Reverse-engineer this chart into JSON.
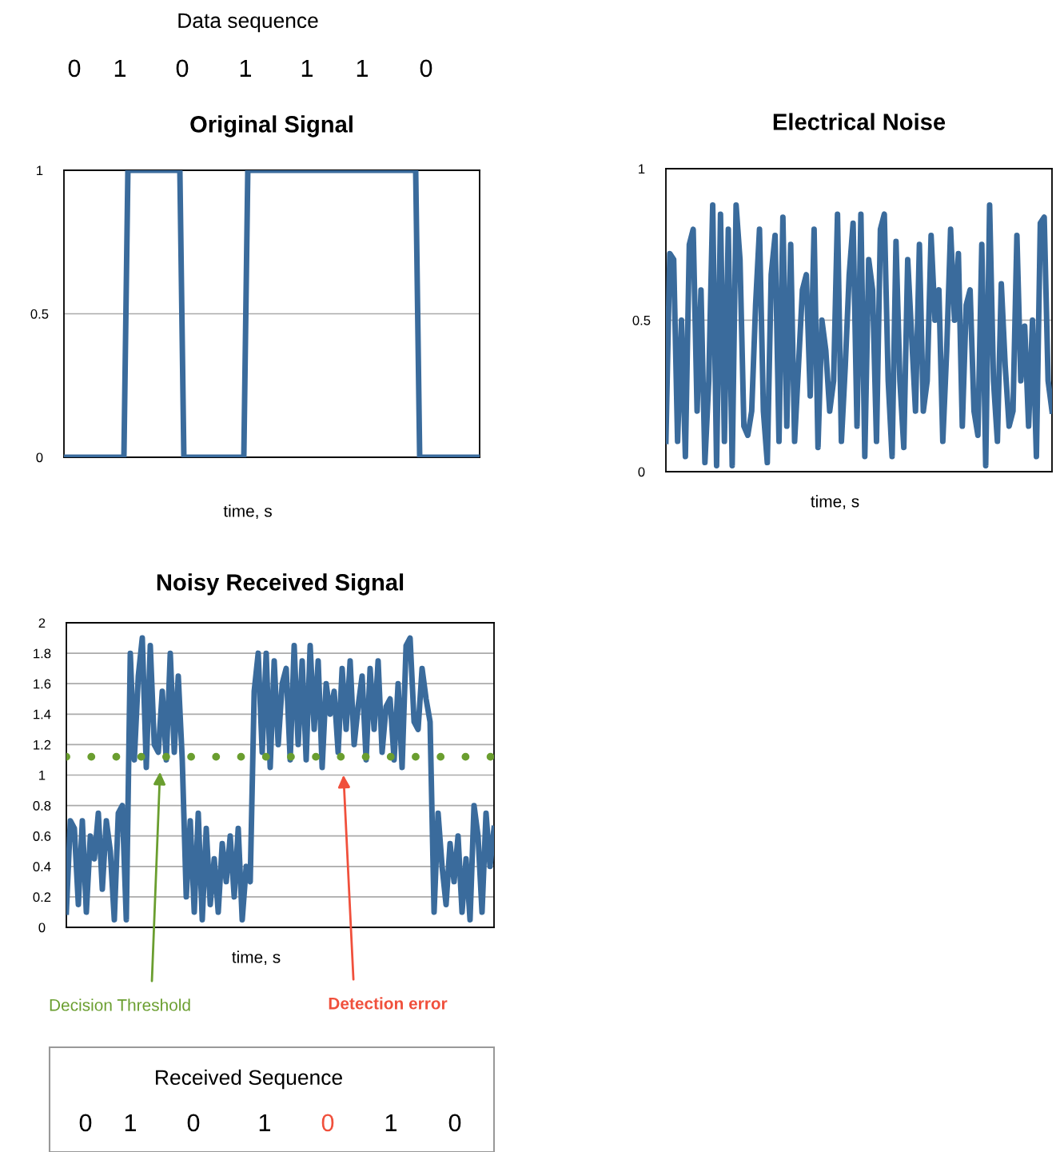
{
  "chart_data": [
    {
      "type": "line",
      "title": "Original Signal",
      "xlabel": "time, s",
      "annotations": [
        "Data sequence",
        "0",
        "1",
        "0",
        "1",
        "1",
        "1",
        "0"
      ],
      "categories": [
        null,
        null,
        null,
        null,
        null,
        null,
        null,
        null,
        null,
        null,
        null,
        null,
        null,
        null,
        null,
        null,
        null,
        null,
        null,
        null,
        null,
        null,
        null,
        null,
        null,
        null,
        null,
        null,
        null,
        null,
        null,
        null,
        null,
        null,
        null,
        null,
        null,
        null,
        null,
        null,
        null,
        null,
        null,
        null,
        null,
        null,
        null,
        null,
        null,
        null,
        null,
        null,
        null,
        null,
        null,
        null,
        null,
        null,
        null,
        null,
        null,
        null,
        null,
        null,
        null,
        null,
        null,
        null,
        null,
        null,
        null,
        null,
        null,
        null,
        null,
        null,
        null,
        null,
        null,
        null,
        null,
        null,
        null,
        null,
        null,
        null,
        null,
        null,
        null,
        null,
        null,
        null,
        null,
        null,
        null,
        null,
        null,
        null,
        null,
        null,
        null,
        null,
        null,
        null,
        null
      ],
      "series": [
        {
          "color": "#3a6b9c",
          "values": [
            0,
            0,
            0,
            0,
            0,
            0,
            0,
            0,
            0,
            0,
            0,
            0,
            0,
            0,
            0,
            0,
            1,
            1,
            1,
            1,
            1,
            1,
            1,
            1,
            1,
            1,
            1,
            1,
            1,
            1,
            0,
            0,
            0,
            0,
            0,
            0,
            0,
            0,
            0,
            0,
            0,
            0,
            0,
            0,
            0,
            0,
            1,
            1,
            1,
            1,
            1,
            1,
            1,
            1,
            1,
            1,
            1,
            1,
            1,
            1,
            1,
            1,
            1,
            1,
            1,
            1,
            1,
            1,
            1,
            1,
            1,
            1,
            1,
            1,
            1,
            1,
            1,
            1,
            1,
            1,
            1,
            1,
            1,
            1,
            1,
            1,
            1,
            1,
            1,
            0,
            0,
            0,
            0,
            0,
            0,
            0,
            0,
            0,
            0,
            0,
            0,
            0,
            0,
            0,
            0
          ]
        }
      ],
      "ylim": [
        0,
        1
      ],
      "yticks": [
        0,
        0.5,
        1
      ],
      "grid": "y",
      "tick_labels": "y",
      "marker": "none",
      "line_style": "solid"
    },
    {
      "type": "line",
      "title": "Electrical Noise",
      "xlabel": "time, s",
      "categories": [
        null,
        null,
        null,
        null,
        null,
        null,
        null,
        null,
        null,
        null,
        null,
        null,
        null,
        null,
        null,
        null,
        null,
        null,
        null,
        null,
        null,
        null,
        null,
        null,
        null,
        null,
        null,
        null,
        null,
        null,
        null,
        null,
        null,
        null,
        null,
        null,
        null,
        null,
        null,
        null,
        null,
        null,
        null,
        null,
        null,
        null,
        null,
        null,
        null,
        null,
        null,
        null,
        null,
        null,
        null,
        null,
        null,
        null,
        null,
        null,
        null,
        null,
        null,
        null,
        null,
        null,
        null,
        null,
        null,
        null,
        null,
        null,
        null,
        null,
        null,
        null,
        null,
        null,
        null,
        null,
        null,
        null,
        null,
        null,
        null,
        null,
        null,
        null,
        null,
        null,
        null,
        null,
        null,
        null,
        null,
        null,
        null,
        null,
        null,
        null
      ],
      "series": [
        {
          "color": "#3a6b9c",
          "values": [
            0.1,
            0.72,
            0.7,
            0.1,
            0.5,
            0.05,
            0.75,
            0.8,
            0.2,
            0.6,
            0.03,
            0.3,
            0.88,
            0.02,
            0.85,
            0.1,
            0.8,
            0.02,
            0.88,
            0.7,
            0.15,
            0.12,
            0.2,
            0.55,
            0.8,
            0.2,
            0.03,
            0.65,
            0.78,
            0.1,
            0.84,
            0.15,
            0.75,
            0.1,
            0.35,
            0.6,
            0.65,
            0.25,
            0.8,
            0.08,
            0.5,
            0.4,
            0.2,
            0.3,
            0.85,
            0.1,
            0.35,
            0.65,
            0.82,
            0.15,
            0.85,
            0.05,
            0.7,
            0.6,
            0.1,
            0.8,
            0.85,
            0.3,
            0.05,
            0.76,
            0.3,
            0.08,
            0.7,
            0.45,
            0.2,
            0.75,
            0.2,
            0.3,
            0.78,
            0.5,
            0.6,
            0.1,
            0.4,
            0.8,
            0.5,
            0.72,
            0.15,
            0.55,
            0.6,
            0.2,
            0.12,
            0.75,
            0.02,
            0.88,
            0.3,
            0.1,
            0.62,
            0.35,
            0.15,
            0.2,
            0.78,
            0.3,
            0.48,
            0.15,
            0.5,
            0.05,
            0.82,
            0.84,
            0.3,
            0.2
          ]
        }
      ],
      "ylim": [
        0,
        1
      ],
      "yticks": [
        0,
        0.5,
        1
      ],
      "grid": "y",
      "tick_labels": "y",
      "marker": "none",
      "line_style": "solid"
    },
    {
      "type": "line",
      "title": "Noisy Received Signal",
      "xlabel": "time, s",
      "annotations": [
        "Detection error",
        "Received Sequence",
        "0",
        "1",
        "0",
        "1",
        "0",
        "1",
        "0"
      ],
      "categories": [
        null,
        null,
        null,
        null,
        null,
        null,
        null,
        null,
        null,
        null,
        null,
        null,
        null,
        null,
        null,
        null,
        null,
        null,
        null,
        null,
        null,
        null,
        null,
        null,
        null,
        null,
        null,
        null,
        null,
        null,
        null,
        null,
        null,
        null,
        null,
        null,
        null,
        null,
        null,
        null,
        null,
        null,
        null,
        null,
        null,
        null,
        null,
        null,
        null,
        null,
        null,
        null,
        null,
        null,
        null,
        null,
        null,
        null,
        null,
        null,
        null,
        null,
        null,
        null,
        null,
        null,
        null,
        null,
        null,
        null,
        null,
        null,
        null,
        null,
        null,
        null,
        null,
        null,
        null,
        null,
        null,
        null,
        null,
        null,
        null,
        null,
        null,
        null,
        null,
        null,
        null,
        null,
        null,
        null,
        null,
        null,
        null,
        null,
        null,
        null,
        null,
        null,
        null,
        null,
        null,
        null,
        null,
        null
      ],
      "series": [
        {
          "color": "#3a6b9c",
          "values": [
            0.1,
            0.7,
            0.65,
            0.15,
            0.7,
            0.1,
            0.6,
            0.45,
            0.75,
            0.25,
            0.7,
            0.5,
            0.05,
            0.75,
            0.8,
            0.05,
            1.8,
            1.1,
            1.65,
            1.9,
            1.05,
            1.85,
            1.2,
            1.15,
            1.55,
            1.1,
            1.8,
            1.15,
            1.65,
            1.1,
            0.2,
            0.7,
            0.1,
            0.75,
            0.05,
            0.65,
            0.15,
            0.45,
            0.1,
            0.55,
            0.3,
            0.6,
            0.2,
            0.65,
            0.05,
            0.4,
            0.3,
            1.55,
            1.8,
            1.15,
            1.8,
            1.05,
            1.75,
            1.2,
            1.6,
            1.7,
            1.1,
            1.85,
            1.2,
            1.75,
            1.1,
            1.85,
            1.3,
            1.75,
            1.05,
            1.6,
            1.4,
            1.55,
            1.15,
            1.7,
            1.3,
            1.75,
            1.2,
            1.45,
            1.65,
            1.1,
            1.7,
            1.3,
            1.75,
            1.15,
            1.45,
            1.5,
            1.1,
            1.6,
            1.05,
            1.85,
            1.9,
            1.35,
            1.3,
            1.7,
            1.5,
            1.35,
            0.1,
            0.75,
            0.4,
            0.15,
            0.55,
            0.3,
            0.6,
            0.1,
            0.45,
            0.05,
            0.8,
            0.6,
            0.1,
            0.75,
            0.4,
            0.65
          ]
        }
      ],
      "ref_lines": [
        {
          "axis": "y",
          "value": 1.12,
          "label": "Decision Threshold",
          "color": "#6a9e2f",
          "line_style": "dotted"
        }
      ],
      "ylim": [
        0,
        2
      ],
      "yticks": [
        0,
        0.2,
        0.4,
        0.6,
        0.8,
        1,
        1.2,
        1.4,
        1.6,
        1.8,
        2
      ],
      "grid": "y",
      "tick_labels": "y",
      "marker": "none",
      "line_style": "solid"
    }
  ]
}
